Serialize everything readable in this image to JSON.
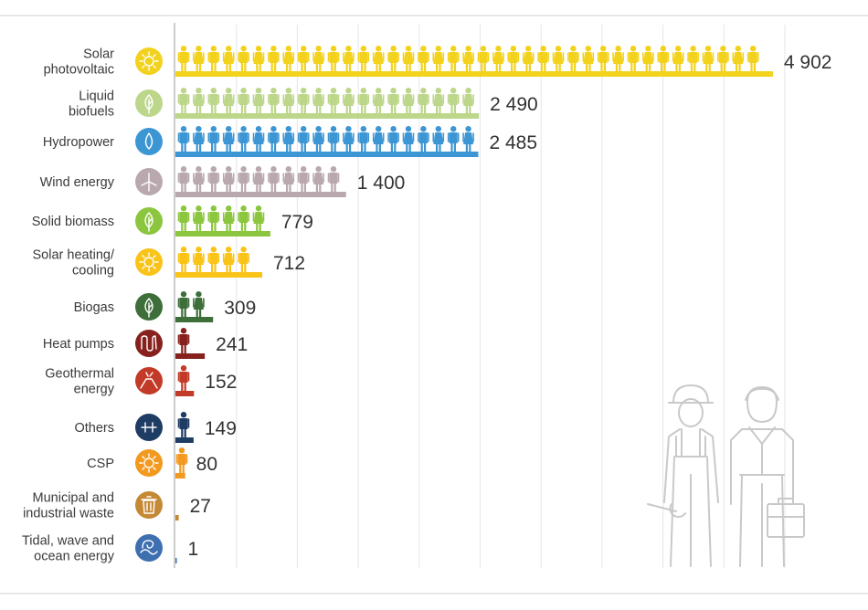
{
  "chart_data": {
    "type": "bar",
    "orientation": "horizontal",
    "title": "",
    "xlabel": "",
    "ylabel": "",
    "categories": [
      "Solar photovoltaic",
      "Liquid biofuels",
      "Hydropower",
      "Wind energy",
      "Solid biomass",
      "Solar heating/ cooling",
      "Biogas",
      "Heat pumps",
      "Geothermal energy",
      "Others",
      "CSP",
      "Municipal and industrial waste",
      "Tidal, wave and ocean energy"
    ],
    "value_labels": [
      "4 902",
      "2 490",
      "2 485",
      "1 400",
      "779",
      "712",
      "309",
      "241",
      "152",
      "149",
      "80",
      "27",
      "1"
    ],
    "values": [
      4902,
      2490,
      2485,
      1400,
      779,
      712,
      309,
      241,
      152,
      149,
      80,
      27,
      1
    ],
    "colors": [
      "#f2d21c",
      "#bcd68a",
      "#3d96d4",
      "#b9a9ae",
      "#8cc63f",
      "#f9c318",
      "#3e6f3a",
      "#86211e",
      "#c23b28",
      "#1f3c64",
      "#f29a1f",
      "#c58936",
      "#3e6fb0"
    ],
    "icons": [
      "sun-icon",
      "leaf-drop-icon",
      "water-drop-icon",
      "wind-turbine-icon",
      "leaf-icon",
      "sun-icon",
      "leaf-icon",
      "heat-coil-icon",
      "volcano-icon",
      "plus-minus-icon",
      "sun-icon",
      "waste-bin-icon",
      "wave-icon"
    ],
    "xlim": [
      0,
      5000
    ],
    "grid": true,
    "legend": "none"
  }
}
